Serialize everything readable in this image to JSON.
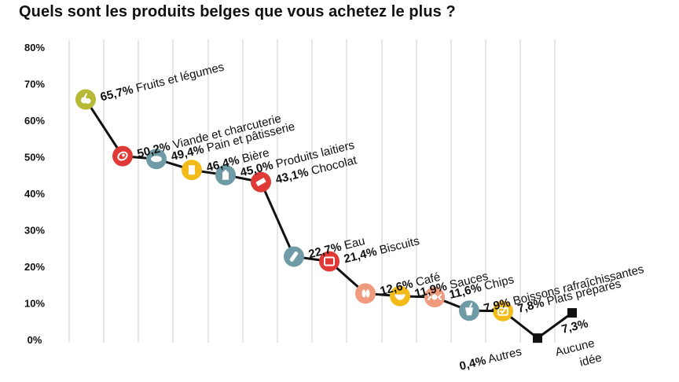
{
  "title": "Quels sont les produits belges que vous achetez le plus ?",
  "chart_data": {
    "type": "line",
    "title": "Quels sont les produits belges que vous achetez le plus ?",
    "xlabel": "",
    "ylabel": "",
    "ylim": [
      0,
      80
    ],
    "y_ticks": [
      "0%",
      "10%",
      "20%",
      "30%",
      "40%",
      "50%",
      "60%",
      "70%",
      "80%"
    ],
    "grid": "vertical",
    "points": [
      {
        "name": "Fruits et légumes",
        "value": 65.7,
        "value_label": "65,7%",
        "color": "#b5b935",
        "icon": "apple-icon"
      },
      {
        "name": "Viande et charcuterie",
        "value": 50.2,
        "value_label": "50,2%",
        "color": "#e03a36",
        "icon": "meat-icon"
      },
      {
        "name": "Pain et pâtisserie",
        "value": 49.4,
        "value_label": "49,4%",
        "color": "#6e9ba5",
        "icon": "bread-icon"
      },
      {
        "name": "Bière",
        "value": 46.4,
        "value_label": "46,4%",
        "color": "#f2bb1a",
        "icon": "beer-glass-icon"
      },
      {
        "name": "Produits laitiers",
        "value": 45.0,
        "value_label": "45,0%",
        "color": "#6e9ba5",
        "icon": "milk-carton-icon"
      },
      {
        "name": "Chocolat",
        "value": 43.1,
        "value_label": "43,1%",
        "color": "#e03a36",
        "icon": "chocolate-icon"
      },
      {
        "name": "Eau",
        "value": 22.7,
        "value_label": "22,7%",
        "color": "#6e9ba5",
        "icon": "water-bottle-icon"
      },
      {
        "name": "Biscuits",
        "value": 21.4,
        "value_label": "21,4%",
        "color": "#e03a36",
        "icon": "biscuit-icon"
      },
      {
        "name": "Café",
        "value": 12.6,
        "value_label": "12,6%",
        "color": "#f09a7e",
        "icon": "coffee-beans-icon"
      },
      {
        "name": "Sauces",
        "value": 11.9,
        "value_label": "11,9%",
        "color": "#f2bb1a",
        "icon": "sauce-boat-icon"
      },
      {
        "name": "Chips",
        "value": 11.6,
        "value_label": "11,6%",
        "color": "#f09a7e",
        "icon": "chips-icon"
      },
      {
        "name": "Boissons rafraîchissantes",
        "value": 7.9,
        "value_label": "7,9%",
        "color": "#6e9ba5",
        "icon": "soft-drink-icon"
      },
      {
        "name": "Plats préparés",
        "value": 7.8,
        "value_label": "7,8%",
        "color": "#f2bb1a",
        "icon": "ready-meal-icon"
      },
      {
        "name": "Autres",
        "value": 0.4,
        "value_label": "0,4%",
        "color": "#111111",
        "icon": "square-marker"
      },
      {
        "name": "Aucune idée",
        "value": 7.3,
        "value_label": "7,3%",
        "color": "#111111",
        "icon": "square-marker"
      }
    ]
  }
}
